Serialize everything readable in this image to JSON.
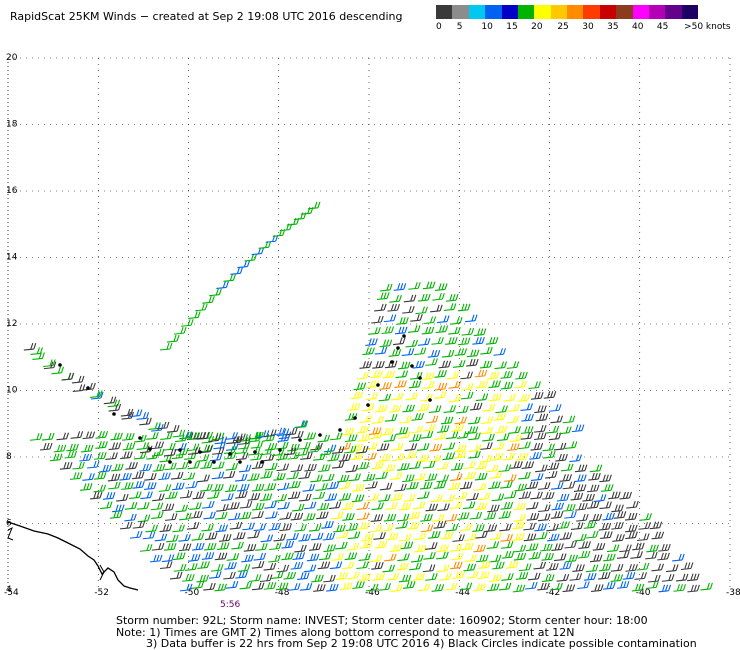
{
  "header": {
    "title": "RapidScat 25KM Winds − created at Sep  2 19:08 UTC 2016  descending"
  },
  "legend": {
    "colors": [
      "#3a3a3a",
      "#8c8c8c",
      "#00c8f0",
      "#0064f0",
      "#0000c8",
      "#00b400",
      "#ffff00",
      "#ffc800",
      "#ff8c00",
      "#ff3c00",
      "#c80000",
      "#8c3c1e",
      "#ff00ff",
      "#b400b4",
      "#64008c",
      "#1e0064"
    ],
    "labels": [
      {
        "text": "0",
        "pos": 0.0
      },
      {
        "text": "5",
        "pos": 0.09
      },
      {
        "text": "10",
        "pos": 0.195
      },
      {
        "text": "15",
        "pos": 0.29
      },
      {
        "text": "20",
        "pos": 0.385
      },
      {
        "text": "25",
        "pos": 0.485
      },
      {
        "text": "30",
        "pos": 0.58
      },
      {
        "text": "35",
        "pos": 0.675
      },
      {
        "text": "40",
        "pos": 0.77
      },
      {
        "text": "45",
        "pos": 0.865
      },
      {
        "text": ">50 knots",
        "pos": 1.0
      }
    ]
  },
  "map": {
    "lon_range": [
      -54,
      -38
    ],
    "lat_range": [
      4,
      20
    ],
    "lon_ticks": [
      "-54",
      "-52",
      "-50",
      "-48",
      "-46",
      "-44",
      "-42",
      "-40",
      "-38"
    ],
    "lat_ticks": [
      "4",
      "6",
      "8",
      "10",
      "12",
      "14",
      "16",
      "18",
      "20"
    ],
    "time_label": "5:56"
  },
  "footer": {
    "line1": "Storm number: 92L;  Storm name: INVEST;  Storm center date: 160902;  Storm center hour: 18:00",
    "line2": "Note: 1) Times are GMT  2) Times along bottom correspond to measurement at 12N",
    "line3": "3) Data buffer is 22 hrs from Sep  2 19:08 UTC 2016   4) Black Circles indicate possible contamination"
  }
}
